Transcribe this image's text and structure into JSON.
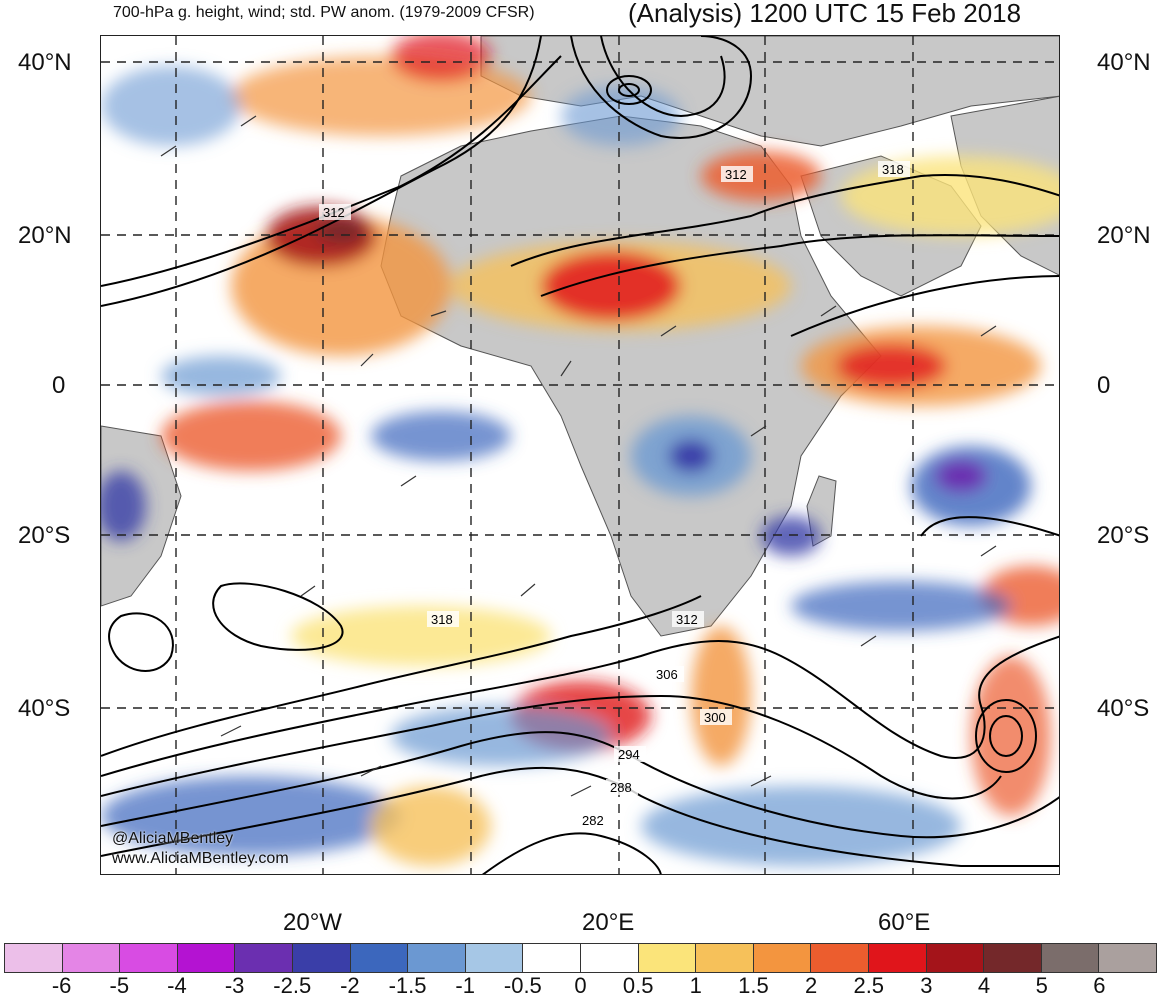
{
  "header": {
    "left_title": "700-hPa g. height, wind; std. PW anom. (1979-2009 CFSR)",
    "right_title": "(Analysis) 1200 UTC 15 Feb 2018"
  },
  "axes": {
    "lat_left": [
      "40°N",
      "20°N",
      "0",
      "20°S",
      "40°S"
    ],
    "lat_right": [
      "40°N",
      "20°N",
      "0",
      "20°S",
      "40°S"
    ],
    "lon": [
      "20°W",
      "20°E",
      "60°E"
    ]
  },
  "contour_labels": [
    "312",
    "312",
    "318",
    "318",
    "312",
    "306",
    "300",
    "294",
    "288",
    "282"
  ],
  "colorbar": {
    "colors": [
      "#ecbfe9",
      "#e485e6",
      "#d84ce3",
      "#b413d2",
      "#6b2fb0",
      "#3a3ea8",
      "#3c67bd",
      "#6b98d2",
      "#a6c7e6",
      "#ffffff",
      "#ffffff",
      "#fbe47a",
      "#f6c15a",
      "#f3953f",
      "#ec5d2e",
      "#e0151b",
      "#a4141a",
      "#74282a",
      "#7b6d6b",
      "#aaa09e"
    ],
    "labels": [
      "-6",
      "-5",
      "-4",
      "-3",
      "-2.5",
      "-2",
      "-1.5",
      "-1",
      "-0.5",
      "0",
      "0.5",
      "1",
      "1.5",
      "2",
      "2.5",
      "3",
      "4",
      "5",
      "6"
    ]
  },
  "credits": {
    "handle": "@AliciaMBentley",
    "website": "www.AliciaMBentley.com"
  }
}
